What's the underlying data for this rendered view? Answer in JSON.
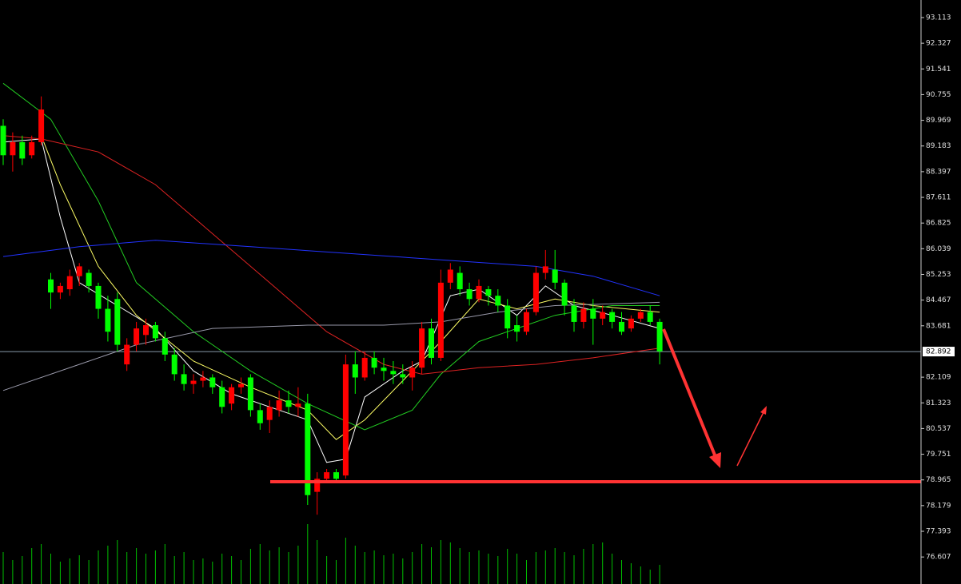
{
  "chart_data": {
    "type": "candlestick",
    "ylim": [
      75.78,
      93.65
    ],
    "yticks": [
      93.113,
      92.327,
      91.541,
      90.755,
      89.969,
      89.183,
      88.397,
      87.611,
      86.825,
      86.039,
      85.253,
      84.467,
      83.681,
      82.109,
      81.323,
      80.537,
      79.751,
      78.965,
      78.179,
      77.393,
      76.607
    ],
    "current_price": 82.892,
    "support_level": 78.91,
    "up_color": "#ff0000",
    "down_color": "#00ff00",
    "volume_color": "#00c000",
    "volume_ylim": [
      0,
      100
    ],
    "open": [
      89.8,
      88.9,
      89.3,
      88.9,
      89.3,
      85.1,
      84.7,
      84.8,
      85.2,
      85.3,
      84.9,
      84.2,
      84.5,
      82.5,
      83.1,
      83.4,
      83.7,
      83.3,
      82.8,
      82.2,
      81.9,
      82.0,
      82.1,
      81.8,
      81.3,
      81.8,
      82.1,
      81.1,
      80.8,
      81.1,
      81.4,
      81.2,
      81.3,
      78.6,
      79.0,
      79.2,
      79.1,
      82.5,
      82.1,
      82.7,
      82.4,
      82.3,
      82.2,
      82.1,
      82.4,
      83.6,
      82.7,
      85.0,
      85.3,
      84.8,
      84.5,
      84.8,
      84.6,
      84.3,
      83.7,
      83.5,
      84.1,
      85.3,
      85.4,
      85.0,
      84.3,
      83.8,
      84.2,
      83.9,
      84.1,
      83.8,
      83.6,
      83.9,
      84.1,
      83.8
    ],
    "high": [
      90.0,
      89.6,
      89.5,
      89.5,
      90.7,
      85.3,
      85.0,
      85.4,
      85.6,
      85.4,
      85.0,
      84.6,
      84.7,
      83.3,
      83.8,
      83.9,
      83.8,
      83.5,
      83.0,
      82.5,
      82.2,
      82.3,
      82.2,
      82.0,
      81.9,
      82.1,
      82.2,
      81.3,
      81.4,
      81.7,
      81.7,
      81.8,
      81.6,
      79.2,
      79.3,
      79.3,
      82.8,
      82.9,
      82.9,
      82.9,
      82.7,
      82.6,
      82.5,
      82.6,
      83.8,
      83.9,
      85.4,
      85.6,
      85.5,
      85.0,
      85.1,
      84.9,
      84.8,
      84.5,
      84.0,
      84.2,
      85.5,
      86.0,
      86.0,
      85.1,
      84.5,
      84.4,
      84.5,
      84.3,
      84.2,
      84.1,
      84.0,
      84.2,
      84.3,
      83.9
    ],
    "low": [
      88.6,
      88.4,
      88.6,
      88.8,
      89.2,
      84.2,
      84.5,
      84.6,
      84.9,
      84.7,
      83.9,
      83.2,
      82.9,
      82.3,
      82.9,
      83.1,
      83.2,
      82.6,
      82.0,
      81.7,
      81.6,
      81.8,
      81.6,
      81.0,
      81.1,
      81.6,
      80.9,
      80.5,
      80.4,
      80.9,
      81.0,
      80.9,
      78.2,
      77.9,
      78.9,
      78.9,
      79.0,
      81.6,
      82.0,
      82.2,
      82.0,
      81.9,
      81.9,
      81.7,
      82.2,
      82.5,
      82.6,
      84.8,
      84.6,
      84.3,
      84.4,
      84.3,
      84.1,
      83.3,
      83.2,
      83.4,
      84.0,
      85.1,
      84.8,
      84.0,
      83.5,
      83.6,
      83.1,
      83.7,
      83.6,
      83.4,
      83.5,
      83.8,
      83.7,
      82.5
    ],
    "close": [
      88.9,
      89.3,
      88.8,
      89.3,
      90.3,
      84.7,
      84.9,
      85.2,
      85.5,
      84.9,
      84.2,
      83.5,
      83.1,
      83.1,
      83.6,
      83.7,
      83.3,
      82.8,
      82.2,
      81.9,
      82.0,
      82.1,
      81.8,
      81.2,
      81.8,
      81.9,
      81.1,
      80.7,
      81.2,
      81.4,
      81.2,
      81.3,
      78.5,
      79.0,
      79.2,
      79.0,
      82.5,
      82.1,
      82.7,
      82.4,
      82.3,
      82.2,
      82.1,
      82.4,
      83.6,
      82.7,
      85.0,
      85.4,
      84.8,
      84.5,
      84.9,
      84.6,
      84.3,
      83.6,
      83.5,
      84.1,
      85.3,
      85.5,
      85.0,
      84.3,
      83.8,
      84.2,
      83.9,
      84.1,
      83.8,
      83.5,
      83.9,
      84.1,
      83.8,
      82.9
    ],
    "volume": [
      40,
      30,
      35,
      45,
      50,
      38,
      28,
      32,
      36,
      30,
      42,
      48,
      55,
      40,
      45,
      38,
      42,
      50,
      35,
      40,
      30,
      32,
      28,
      38,
      35,
      30,
      44,
      50,
      42,
      46,
      40,
      48,
      75,
      55,
      35,
      30,
      58,
      48,
      40,
      42,
      36,
      38,
      32,
      40,
      50,
      46,
      55,
      52,
      45,
      40,
      42,
      38,
      35,
      44,
      38,
      30,
      40,
      42,
      45,
      40,
      36,
      44,
      50,
      52,
      38,
      30,
      26,
      22,
      18,
      24
    ],
    "moving_averages": [
      {
        "color": "#ffffff",
        "x": [
          0,
          4,
          6,
          8,
          12,
          16,
          20,
          24,
          28,
          32,
          34,
          36,
          38,
          42,
          44,
          47,
          50,
          54,
          57,
          60,
          64,
          69
        ],
        "values": [
          89.3,
          89.4,
          87.0,
          85.0,
          84.3,
          83.6,
          82.3,
          81.6,
          81.2,
          80.8,
          79.5,
          79.6,
          81.5,
          82.3,
          82.6,
          84.6,
          84.8,
          84.0,
          84.9,
          84.3,
          84.0,
          83.6
        ]
      },
      {
        "color": "#ffff66",
        "x": [
          4,
          6,
          10,
          14,
          20,
          26,
          32,
          35,
          38,
          42,
          46,
          50,
          54,
          58,
          62,
          69
        ],
        "values": [
          89.5,
          88.0,
          85.5,
          84.0,
          82.6,
          81.8,
          81.1,
          80.2,
          80.8,
          82.0,
          83.2,
          84.5,
          84.2,
          84.5,
          84.3,
          84.1
        ]
      },
      {
        "color": "#22cc22",
        "x": [
          0,
          5,
          10,
          14,
          20,
          26,
          32,
          38,
          43,
          46,
          50,
          54,
          58,
          64,
          69
        ],
        "values": [
          91.1,
          90.0,
          87.5,
          85.0,
          83.5,
          82.3,
          81.3,
          80.5,
          81.1,
          82.2,
          83.2,
          83.6,
          84.0,
          84.3,
          84.3
        ]
      },
      {
        "color": "#dd2222",
        "x": [
          0,
          4,
          10,
          16,
          22,
          28,
          34,
          40,
          44,
          50,
          56,
          62,
          69
        ],
        "values": [
          89.5,
          89.4,
          89.0,
          88.0,
          86.5,
          85.0,
          83.5,
          82.5,
          82.2,
          82.4,
          82.5,
          82.7,
          83.0
        ]
      },
      {
        "color": "#2233ff",
        "x": [
          0,
          8,
          16,
          26,
          36,
          46,
          56,
          62,
          69
        ],
        "values": [
          85.8,
          86.1,
          86.3,
          86.1,
          85.9,
          85.7,
          85.5,
          85.2,
          84.6
        ]
      },
      {
        "color": "#9999aa",
        "x": [
          0,
          8,
          14,
          22,
          32,
          40,
          46,
          52,
          58,
          69
        ],
        "values": [
          81.7,
          82.5,
          83.1,
          83.6,
          83.7,
          83.7,
          83.8,
          84.1,
          84.3,
          84.4
        ]
      }
    ]
  }
}
